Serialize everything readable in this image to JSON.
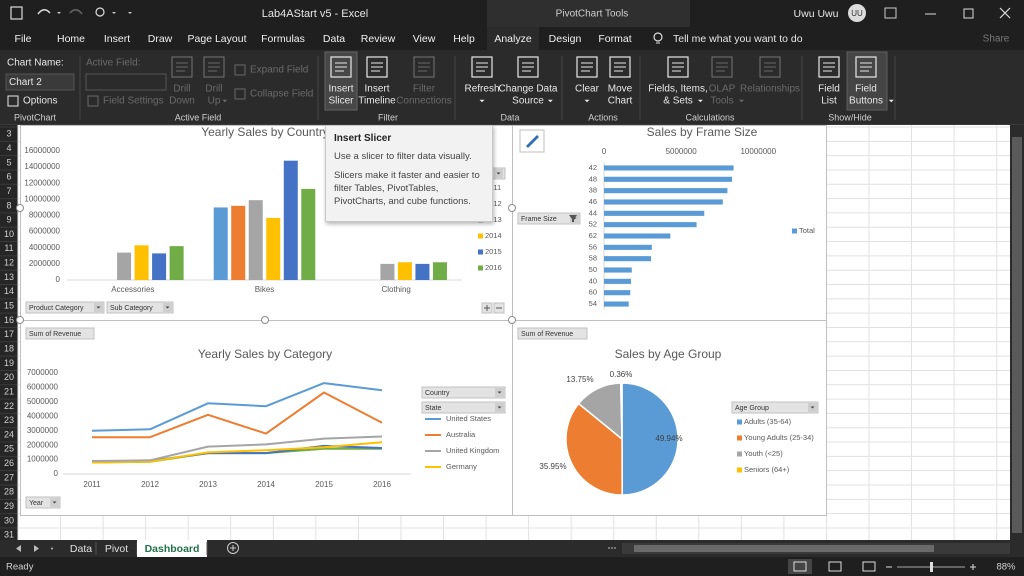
{
  "title_bar": {
    "document": "Lab4AStart v5  -  Excel",
    "context": "PivotChart Tools",
    "user": "Uwu Uwu",
    "initials": "UU"
  },
  "tabs": [
    {
      "label": "File"
    },
    {
      "label": "Home"
    },
    {
      "label": "Insert"
    },
    {
      "label": "Draw"
    },
    {
      "label": "Page Layout"
    },
    {
      "label": "Formulas"
    },
    {
      "label": "Data"
    },
    {
      "label": "Review"
    },
    {
      "label": "View"
    },
    {
      "label": "Help"
    },
    {
      "label": "Analyze",
      "selected": true
    },
    {
      "label": "Design"
    },
    {
      "label": "Format"
    }
  ],
  "tell_me": "Tell me what you want to do",
  "share": "Share",
  "ribbon": {
    "groups": [
      {
        "label": "PivotChart",
        "items": [
          {
            "kind": "caption",
            "lines": [
              "Chart Name:"
            ]
          },
          {
            "kind": "input",
            "lines": [
              "Chart 2"
            ]
          },
          {
            "kind": "small",
            "lines": [
              "Options"
            ]
          }
        ]
      },
      {
        "label": "Active Field",
        "items": [
          {
            "kind": "caption",
            "lines": [
              "Active Field:"
            ],
            "enabled": false
          },
          {
            "kind": "input",
            "enabled": false
          },
          {
            "kind": "small",
            "lines": [
              "Field Settings"
            ],
            "enabled": false
          },
          {
            "kind": "large",
            "lines": [
              "Drill",
              "Down"
            ],
            "enabled": false
          },
          {
            "kind": "large",
            "lines": [
              "Drill",
              "Up"
            ],
            "enabled": false,
            "dropdown": true
          },
          {
            "kind": "small",
            "lines": [
              "Expand Field"
            ],
            "enabled": false
          },
          {
            "kind": "small",
            "lines": [
              "Collapse Field"
            ],
            "enabled": false
          }
        ]
      },
      {
        "label": "Filter",
        "items": [
          {
            "kind": "large",
            "lines": [
              "Insert",
              "Slicer"
            ],
            "hover": true
          },
          {
            "kind": "large",
            "lines": [
              "Insert",
              "Timeline"
            ]
          },
          {
            "kind": "large",
            "lines": [
              "Filter",
              "Connections"
            ],
            "enabled": false
          }
        ]
      },
      {
        "label": "Data",
        "items": [
          {
            "kind": "large",
            "lines": [
              "Refresh"
            ],
            "dropdown": true
          },
          {
            "kind": "large",
            "lines": [
              "Change Data",
              "Source"
            ],
            "dropdown": true
          }
        ]
      },
      {
        "label": "Actions",
        "items": [
          {
            "kind": "large",
            "lines": [
              "Clear"
            ],
            "dropdown": true
          },
          {
            "kind": "large",
            "lines": [
              "Move",
              "Chart"
            ]
          }
        ]
      },
      {
        "label": "Calculations",
        "items": [
          {
            "kind": "large",
            "lines": [
              "Fields, Items,",
              "& Sets"
            ],
            "dropdown": true
          },
          {
            "kind": "large",
            "lines": [
              "OLAP",
              "Tools"
            ],
            "enabled": false,
            "dropdown": true
          },
          {
            "kind": "large",
            "lines": [
              "Relationships"
            ],
            "enabled": false
          }
        ]
      },
      {
        "label": "Show/Hide",
        "items": [
          {
            "kind": "large",
            "lines": [
              "Field",
              "List"
            ]
          },
          {
            "kind": "large",
            "lines": [
              "Field",
              "Buttons"
            ],
            "selected": true,
            "dropdown": true
          }
        ]
      }
    ]
  },
  "row_numbers": [
    3,
    4,
    5,
    6,
    7,
    8,
    9,
    10,
    11,
    12,
    13,
    14,
    15,
    16,
    17,
    18,
    19,
    20,
    21,
    22,
    23,
    24,
    25,
    26,
    27,
    28,
    29,
    30,
    31
  ],
  "chart_data": [
    {
      "type": "bar",
      "title": "Yearly Sales by Country",
      "categories": [
        "Accessories",
        "Bikes",
        "Clothing"
      ],
      "series": [
        {
          "name": "2011",
          "color": "#5b9bd5",
          "values": [
            null,
            9000000,
            null
          ]
        },
        {
          "name": "2012",
          "color": "#ed7d31",
          "values": [
            null,
            9200000,
            null
          ]
        },
        {
          "name": "2013",
          "color": "#a5a5a5",
          "values": [
            3400000,
            9900000,
            2000000
          ]
        },
        {
          "name": "2014",
          "color": "#ffc000",
          "values": [
            4300000,
            7700000,
            2200000
          ]
        },
        {
          "name": "2015",
          "color": "#4472c4",
          "values": [
            3300000,
            14800000,
            2000000
          ]
        },
        {
          "name": "2016",
          "color": "#70ad47",
          "values": [
            4200000,
            11300000,
            2200000
          ]
        }
      ],
      "ylim": [
        0,
        16000000
      ],
      "yticks": [
        0,
        2000000,
        4000000,
        6000000,
        8000000,
        10000000,
        12000000,
        14000000,
        16000000
      ],
      "grid": false,
      "legend": "right",
      "field_buttons": [
        "Product Category",
        "Sub Category"
      ]
    },
    {
      "type": "bar",
      "orientation": "horizontal",
      "title": "Sales by Frame Size",
      "categories": [
        "42",
        "48",
        "38",
        "46",
        "44",
        "52",
        "62",
        "56",
        "58",
        "50",
        "40",
        "60",
        "54"
      ],
      "series": [
        {
          "name": "Total",
          "color": "#5b9bd5",
          "values": [
            8400000,
            8300000,
            8000000,
            7700000,
            6500000,
            6000000,
            4300000,
            3100000,
            3050000,
            1800000,
            1750000,
            1700000,
            1600000
          ]
        }
      ],
      "xlim": [
        0,
        14000000
      ],
      "xticks": [
        0,
        5000000,
        10000000
      ],
      "grid": false,
      "legend": "right",
      "field_buttons": [
        "Frame Size"
      ]
    },
    {
      "type": "line",
      "title": "Yearly Sales by Category",
      "categories": [
        "2011",
        "2012",
        "2013",
        "2014",
        "2015",
        "2016"
      ],
      "series": [
        {
          "name": "United States",
          "color": "#5b9bd5",
          "values": [
            3000000,
            3100000,
            4900000,
            4700000,
            6300000,
            5800000
          ]
        },
        {
          "name": "Australia",
          "color": "#ed7d31",
          "values": [
            2550000,
            2550000,
            4100000,
            2800000,
            5650000,
            3550000
          ]
        },
        {
          "name": "United Kingdom",
          "color": "#a5a5a5",
          "values": [
            900000,
            950000,
            1900000,
            2050000,
            2450000,
            2600000
          ]
        },
        {
          "name": "Germany",
          "color": "#ffc000",
          "values": [
            800000,
            850000,
            1500000,
            1650000,
            1850000,
            2200000
          ]
        },
        {
          "color": "#4472c4",
          "values": [
            850000,
            900000,
            1450000,
            1450000,
            1950000,
            1800000
          ]
        },
        {
          "color": "#70ad47",
          "values": [
            800000,
            850000,
            1450000,
            1450000,
            1750000,
            1750000
          ]
        }
      ],
      "ylim": [
        0,
        7000000
      ],
      "yticks": [
        0,
        1000000,
        2000000,
        3000000,
        4000000,
        5000000,
        6000000,
        7000000
      ],
      "grid": false,
      "legend": "right",
      "field_buttons": [
        "Sum of Revenue",
        "Country",
        "State",
        "Year"
      ]
    },
    {
      "type": "pie",
      "title": "Sales by Age Group",
      "categories": [
        "Adults (35-64)",
        "Young Adults (25-34)",
        "Youth (<25)",
        "Seniors (64+)"
      ],
      "values": [
        49.94,
        35.95,
        13.75,
        0.36
      ],
      "value_labels": [
        "49.94%",
        "35.95%",
        "13.75%",
        "0.36%"
      ],
      "colors": [
        "#5b9bd5",
        "#ed7d31",
        "#a5a5a5",
        "#ffc000"
      ],
      "legend": "right",
      "field_buttons": [
        "Sum of Revenue",
        "Age Group"
      ]
    }
  ],
  "tooltip": {
    "title": "Insert Slicer",
    "paragraphs": [
      "Use a slicer to filter data visually.",
      "Slicers make it faster and easier to filter Tables, PivotTables, PivotCharts, and cube functions."
    ]
  },
  "sheet_tabs": [
    {
      "label": "Data"
    },
    {
      "label": "Pivot"
    },
    {
      "label": "Dashboard",
      "selected": true
    }
  ],
  "status": "Ready",
  "zoom": "88%"
}
